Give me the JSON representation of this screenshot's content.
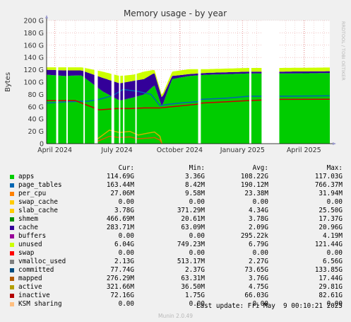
{
  "chart_data": {
    "type": "area",
    "title": "Memory usage - by year",
    "ylabel": "Bytes",
    "xlabel": "",
    "ylim": [
      0,
      200
    ],
    "y_unit": "G",
    "yticks": [
      "0",
      "20 G",
      "40 G",
      "60 G",
      "80 G",
      "100 G",
      "120 G",
      "140 G",
      "160 G",
      "180 G",
      "200 G"
    ],
    "xticks": [
      "April 2024",
      "July 2024",
      "October 2024",
      "January 2025",
      "April 2025"
    ],
    "xtick_dates": [
      "2024-04-01",
      "2024-07-01",
      "2024-10-01",
      "2025-01-01",
      "2025-04-01"
    ],
    "x_range": [
      "2024-03-20",
      "2025-05-09"
    ],
    "grid": true,
    "watermark": "RRDTOOL / TOBI OETIKER",
    "gaps": [
      [
        "2024-04-03",
        "2024-04-06"
      ],
      [
        "2024-04-18",
        "2024-04-20"
      ],
      [
        "2024-05-13",
        "2024-05-15"
      ],
      [
        "2024-05-29",
        "2024-06-03"
      ],
      [
        "2024-06-23",
        "2024-06-27"
      ],
      [
        "2024-07-04",
        "2024-07-06"
      ],
      [
        "2024-07-10",
        "2024-07-12"
      ],
      [
        "2024-07-28",
        "2024-07-30"
      ],
      [
        "2024-10-28",
        "2024-11-01"
      ],
      [
        "2025-01-11",
        "2025-01-14"
      ],
      [
        "2025-01-29",
        "2025-02-24"
      ]
    ],
    "stack_profile": {
      "dates": [
        "2024-03-20",
        "2024-04-15",
        "2024-05-10",
        "2024-06-10",
        "2024-07-05",
        "2024-07-25",
        "2024-08-10",
        "2024-08-25",
        "2024-09-05",
        "2024-09-20",
        "2024-10-15",
        "2024-11-10",
        "2024-12-10",
        "2025-01-10",
        "2025-02-24",
        "2025-05-09"
      ],
      "apps": [
        112,
        110,
        111,
        85,
        70,
        75,
        80,
        95,
        60,
        105,
        110,
        112,
        113,
        114,
        114,
        114.7
      ],
      "caches": [
        8,
        9,
        8,
        22,
        28,
        27,
        25,
        20,
        14,
        5,
        3,
        3,
        3,
        3,
        3,
        3
      ],
      "unused": [
        4,
        5,
        5,
        10,
        12,
        10,
        12,
        5,
        4,
        7,
        8,
        6,
        6,
        6,
        6,
        6
      ]
    },
    "series": [
      {
        "name": "committed",
        "color": "#0066b3",
        "dates": [
          "2024-03-20",
          "2024-04-20",
          "2024-05-20",
          "2024-06-05",
          "2024-06-25",
          "2024-07-10",
          "2024-08-01",
          "2024-08-20",
          "2024-09-02",
          "2024-09-15",
          "2024-10-01",
          "2024-10-27",
          "2024-11-02",
          "2024-12-10",
          "2025-01-10",
          "2025-02-24",
          "2025-05-09"
        ],
        "values": [
          66,
          68,
          69,
          72,
          78,
          88,
          85,
          80,
          62,
          64,
          66,
          68,
          72,
          74,
          77,
          77,
          77.7
        ]
      },
      {
        "name": "inactive",
        "color": "#cc0000",
        "dates": [
          "2024-03-20",
          "2024-05-01",
          "2024-06-05",
          "2024-07-01",
          "2024-07-20",
          "2024-08-10",
          "2024-08-25",
          "2024-09-02",
          "2024-09-20",
          "2024-10-27",
          "2024-11-02",
          "2024-12-10",
          "2025-01-10",
          "2025-02-24",
          "2025-05-09"
        ],
        "values": [
          70,
          70,
          55,
          57,
          57,
          58,
          58,
          58,
          60,
          64,
          66,
          68,
          70,
          72,
          72.2
        ]
      },
      {
        "name": "active",
        "color": "#ccb300",
        "dates": [
          "2024-06-03",
          "2024-06-20",
          "2024-07-05",
          "2024-07-20",
          "2024-08-01",
          "2024-08-15",
          "2024-08-25",
          "2024-09-02",
          "2024-09-05"
        ],
        "values": [
          8,
          22,
          18,
          20,
          14,
          17,
          19,
          12,
          0
        ]
      },
      {
        "name": "mapped",
        "color": "#cc6600",
        "dates": [
          "2024-06-03",
          "2024-06-20",
          "2024-07-05",
          "2024-07-20",
          "2024-08-01",
          "2024-08-15",
          "2024-08-25",
          "2024-09-02",
          "2024-09-05"
        ],
        "values": [
          4,
          12,
          10,
          11,
          8,
          9,
          10,
          6,
          0
        ]
      }
    ],
    "legend": {
      "headers": {
        "cur": "Cur:",
        "min": "Min:",
        "avg": "Avg:",
        "max": "Max:"
      },
      "rows": [
        {
          "name": "apps",
          "color": "#00cc00",
          "cur": "114.69G",
          "min": "3.36G",
          "avg": "108.22G",
          "max": "117.03G"
        },
        {
          "name": "page_tables",
          "color": "#0066b3",
          "cur": "163.44M",
          "min": "8.42M",
          "avg": "190.12M",
          "max": "766.37M"
        },
        {
          "name": "per_cpu",
          "color": "#ff8000",
          "cur": "27.06M",
          "min": "9.58M",
          "avg": "23.38M",
          "max": "31.94M"
        },
        {
          "name": "swap_cache",
          "color": "#ffcc00",
          "cur": "0.00",
          "min": "0.00",
          "avg": "0.00",
          "max": "0.00"
        },
        {
          "name": "slab_cache",
          "color": "#ffcc00",
          "cur": "3.78G",
          "min": "371.29M",
          "avg": "4.34G",
          "max": "25.50G"
        },
        {
          "name": "shmem",
          "color": "#008f00",
          "cur": "466.69M",
          "min": "20.61M",
          "avg": "3.78G",
          "max": "17.37G"
        },
        {
          "name": "cache",
          "color": "#330099",
          "cur": "283.71M",
          "min": "63.09M",
          "avg": "2.09G",
          "max": "20.96G"
        },
        {
          "name": "buffers",
          "color": "#990099",
          "cur": "0.00",
          "min": "0.00",
          "avg": "295.22k",
          "max": "4.19M"
        },
        {
          "name": "unused",
          "color": "#ccff00",
          "cur": "6.04G",
          "min": "749.23M",
          "avg": "6.79G",
          "max": "121.44G"
        },
        {
          "name": "swap",
          "color": "#ff0000",
          "cur": "0.00",
          "min": "0.00",
          "avg": "0.00",
          "max": "0.00"
        },
        {
          "name": "vmalloc_used",
          "color": "#808080",
          "cur": "2.13G",
          "min": "513.17M",
          "avg": "2.27G",
          "max": "6.56G"
        },
        {
          "name": "committed",
          "color": "#004d80",
          "cur": "77.74G",
          "min": "2.37G",
          "avg": "73.65G",
          "max": "133.85G"
        },
        {
          "name": "mapped",
          "color": "#b35a00",
          "cur": "276.29M",
          "min": "63.31M",
          "avg": "3.76G",
          "max": "17.44G"
        },
        {
          "name": "active",
          "color": "#b39f00",
          "cur": "321.66M",
          "min": "36.50M",
          "avg": "4.75G",
          "max": "29.81G"
        },
        {
          "name": "inactive",
          "color": "#b30000",
          "cur": "72.16G",
          "min": "1.75G",
          "avg": "66.03G",
          "max": "82.61G"
        },
        {
          "name": "KSM sharing",
          "color": "#ffbf80",
          "cur": "0.00",
          "min": "0.00",
          "avg": "0.00",
          "max": "0.00"
        }
      ]
    }
  },
  "footer": {
    "last_update": "Last update: Fri May  9 00:10:21 2025",
    "munin_version": "Munin 2.0.49"
  },
  "colors": {
    "background": "#f0f0f0",
    "plot_background": "#ffffff",
    "grid": "#e8a0a0",
    "apps": "#00cc00",
    "unused": "#ccff00",
    "cache": "#330099"
  }
}
